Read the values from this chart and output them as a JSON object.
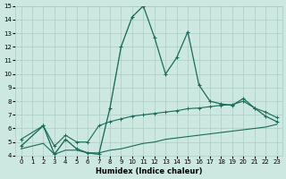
{
  "xlabel": "Humidex (Indice chaleur)",
  "bg_color": "#cce8e0",
  "grid_color": "#aaccc4",
  "line_color": "#1a6b5a",
  "xlim": [
    -0.5,
    23.5
  ],
  "ylim": [
    4,
    15
  ],
  "xticks": [
    0,
    1,
    2,
    3,
    4,
    5,
    6,
    7,
    8,
    9,
    10,
    11,
    12,
    13,
    14,
    15,
    16,
    17,
    18,
    19,
    20,
    21,
    22,
    23
  ],
  "yticks": [
    4,
    5,
    6,
    7,
    8,
    9,
    10,
    11,
    12,
    13,
    14,
    15
  ],
  "main_x": [
    0,
    2,
    3,
    4,
    5,
    6,
    7,
    8,
    9,
    10,
    11,
    12,
    13,
    14,
    15,
    16,
    17,
    18,
    19,
    20,
    21,
    22,
    23
  ],
  "main_y": [
    4.7,
    6.2,
    4.1,
    5.2,
    4.5,
    4.2,
    4.1,
    7.5,
    12.0,
    14.2,
    15.0,
    12.7,
    10.0,
    11.2,
    13.1,
    9.2,
    8.0,
    7.8,
    7.7,
    8.2,
    7.5,
    6.9,
    6.5
  ],
  "dotted_x": [
    0,
    2,
    3,
    4,
    5,
    6,
    7,
    8,
    9,
    10,
    11
  ],
  "dotted_y": [
    4.7,
    6.2,
    4.1,
    5.2,
    4.5,
    4.2,
    4.1,
    7.5,
    12.0,
    14.2,
    15.0
  ],
  "upper_x": [
    0,
    2,
    3,
    4,
    5,
    6,
    7,
    8,
    9,
    10,
    11,
    12,
    13,
    14,
    15,
    16,
    17,
    18,
    19,
    20,
    21,
    22,
    23
  ],
  "upper_y": [
    5.2,
    6.2,
    4.7,
    5.5,
    5.0,
    5.0,
    6.2,
    6.5,
    6.7,
    6.9,
    7.0,
    7.1,
    7.2,
    7.3,
    7.45,
    7.5,
    7.6,
    7.7,
    7.75,
    8.0,
    7.5,
    7.2,
    6.8
  ],
  "lower_x": [
    0,
    2,
    3,
    4,
    5,
    6,
    7,
    8,
    9,
    10,
    11,
    12,
    13,
    14,
    15,
    16,
    17,
    18,
    19,
    20,
    21,
    22,
    23
  ],
  "lower_y": [
    4.5,
    4.9,
    4.1,
    4.4,
    4.4,
    4.2,
    4.2,
    4.4,
    4.5,
    4.7,
    4.9,
    5.0,
    5.2,
    5.3,
    5.4,
    5.5,
    5.6,
    5.7,
    5.8,
    5.9,
    6.0,
    6.1,
    6.3
  ],
  "xlabel_fontsize": 6,
  "tick_fontsize": 5
}
